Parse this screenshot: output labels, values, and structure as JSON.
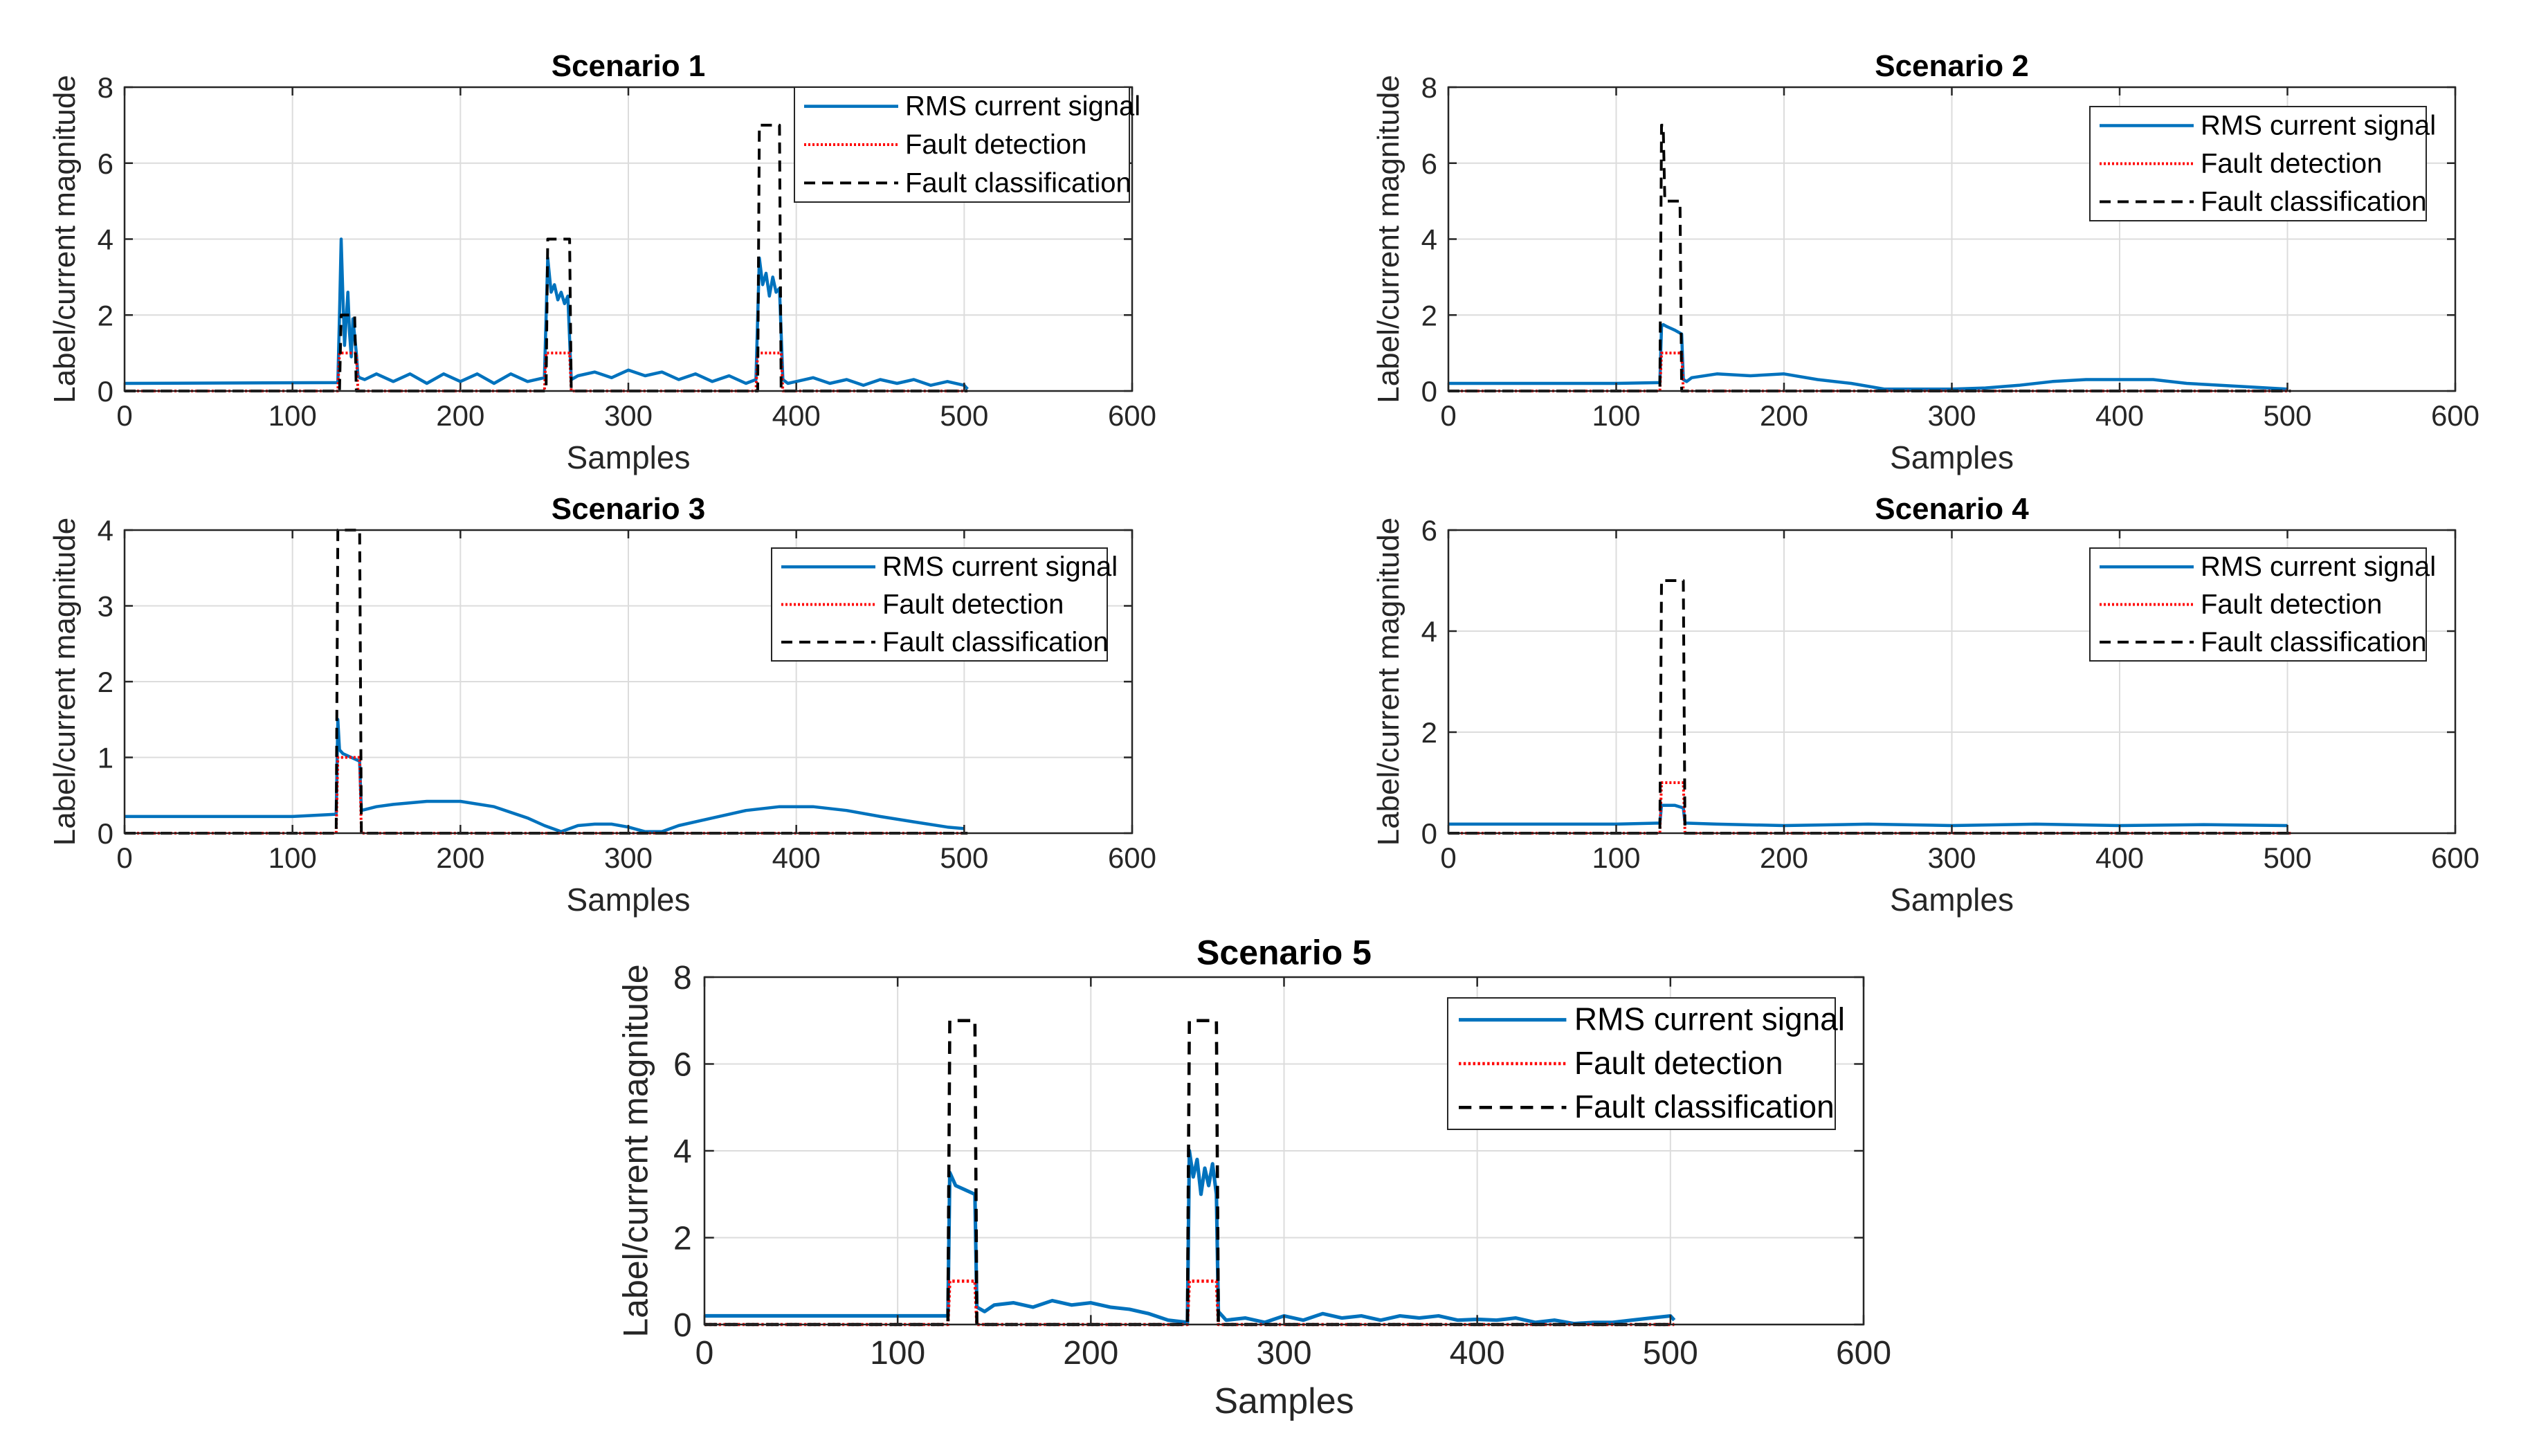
{
  "figure": {
    "colors": {
      "rms": "#0072BD",
      "detection": "#FF0000",
      "classification": "#000000",
      "grid": "#dcdcdc",
      "axis": "#262626"
    }
  },
  "chart_data": [
    {
      "type": "line",
      "title": "Scenario 1",
      "xlabel": "Samples",
      "ylabel": "Label/current magnitude",
      "xlim": [
        0,
        600
      ],
      "ylim": [
        0,
        8
      ],
      "xticks": [
        "0",
        "100",
        "200",
        "300",
        "400",
        "500",
        "600"
      ],
      "yticks": [
        "0",
        "2",
        "4",
        "6",
        "8"
      ],
      "legend": [
        "RMS current signal",
        "Fault detection",
        "Fault classification"
      ],
      "legend_position": "top-right",
      "series": [
        {
          "name": "RMS current signal",
          "style": "solid",
          "x": [
            0,
            127,
            128,
            129,
            130,
            131,
            133,
            134,
            135,
            136,
            138,
            139,
            140,
            143,
            150,
            160,
            170,
            180,
            190,
            200,
            210,
            220,
            230,
            240,
            250,
            252,
            254,
            256,
            258,
            260,
            262,
            264,
            266,
            270,
            280,
            290,
            300,
            310,
            320,
            330,
            340,
            350,
            360,
            370,
            376,
            378,
            380,
            382,
            384,
            386,
            388,
            390,
            392,
            395,
            400,
            410,
            420,
            430,
            440,
            450,
            460,
            470,
            480,
            490,
            500,
            502
          ],
          "y": [
            0.2,
            0.22,
            2.0,
            4.0,
            2.5,
            1.2,
            2.6,
            1.5,
            0.9,
            1.9,
            1.0,
            0.4,
            0.35,
            0.3,
            0.45,
            0.25,
            0.45,
            0.2,
            0.45,
            0.25,
            0.45,
            0.2,
            0.45,
            0.25,
            0.35,
            3.5,
            2.6,
            2.8,
            2.4,
            2.6,
            2.3,
            2.5,
            0.3,
            0.4,
            0.5,
            0.35,
            0.55,
            0.4,
            0.5,
            0.3,
            0.45,
            0.25,
            0.4,
            0.2,
            0.3,
            3.5,
            2.8,
            3.1,
            2.5,
            3.0,
            2.6,
            2.7,
            0.3,
            0.2,
            0.25,
            0.35,
            0.2,
            0.3,
            0.15,
            0.3,
            0.2,
            0.3,
            0.15,
            0.25,
            0.15,
            0.05
          ]
        },
        {
          "name": "Fault detection",
          "style": "dotted",
          "x": [
            0,
            127,
            128,
            138,
            139,
            250,
            251,
            265,
            266,
            376,
            377,
            391,
            392,
            502
          ],
          "y": [
            0,
            0,
            1,
            1,
            0,
            0,
            1,
            1,
            0,
            0,
            1,
            1,
            0,
            0
          ]
        },
        {
          "name": "Fault classification",
          "style": "dashed",
          "x": [
            0,
            128,
            129,
            137,
            138,
            251,
            252,
            265,
            266,
            377,
            378,
            390,
            391,
            502
          ],
          "y": [
            0,
            0,
            2,
            2,
            0,
            0,
            4,
            4,
            0,
            0,
            7,
            7,
            0,
            0
          ]
        }
      ]
    },
    {
      "type": "line",
      "title": "Scenario 2",
      "xlabel": "Samples",
      "ylabel": "Label/current magnitude",
      "xlim": [
        0,
        600
      ],
      "ylim": [
        0,
        8
      ],
      "xticks": [
        "0",
        "100",
        "200",
        "300",
        "400",
        "500",
        "600"
      ],
      "yticks": [
        "0",
        "2",
        "4",
        "6",
        "8"
      ],
      "legend": [
        "RMS current signal",
        "Fault detection",
        "Fault classification"
      ],
      "legend_position": "top-right",
      "series": [
        {
          "name": "RMS current signal",
          "style": "solid",
          "x": [
            0,
            100,
            126,
            127,
            128,
            130,
            135,
            139,
            140,
            142,
            145,
            160,
            180,
            200,
            220,
            240,
            260,
            280,
            300,
            320,
            340,
            360,
            380,
            400,
            420,
            440,
            460,
            480,
            500
          ],
          "y": [
            0.2,
            0.2,
            0.22,
            1.7,
            1.75,
            1.7,
            1.6,
            1.5,
            0.3,
            0.25,
            0.35,
            0.45,
            0.4,
            0.45,
            0.3,
            0.2,
            0.05,
            0.05,
            0.05,
            0.08,
            0.15,
            0.25,
            0.3,
            0.3,
            0.3,
            0.2,
            0.15,
            0.1,
            0.05
          ]
        },
        {
          "name": "Fault detection",
          "style": "dotted",
          "x": [
            0,
            126,
            127,
            139,
            140,
            502
          ],
          "y": [
            0,
            0,
            1,
            1,
            0,
            0
          ]
        },
        {
          "name": "Fault classification",
          "style": "dashed",
          "x": [
            0,
            126,
            127,
            128,
            129,
            136,
            137,
            138,
            139,
            502
          ],
          "y": [
            0,
            0,
            7,
            7,
            5,
            5,
            5,
            5,
            0,
            0
          ]
        }
      ]
    },
    {
      "type": "line",
      "title": "Scenario 3",
      "xlabel": "Samples",
      "ylabel": "Label/current magnitude",
      "xlim": [
        0,
        600
      ],
      "ylim": [
        0,
        4
      ],
      "xticks": [
        "0",
        "100",
        "200",
        "300",
        "400",
        "500",
        "600"
      ],
      "yticks": [
        "0",
        "1",
        "2",
        "3",
        "4"
      ],
      "legend": [
        "RMS current signal",
        "Fault detection",
        "Fault classification"
      ],
      "legend_position": "top-right",
      "series": [
        {
          "name": "RMS current signal",
          "style": "solid",
          "x": [
            0,
            50,
            100,
            126,
            127,
            128,
            130,
            135,
            140,
            141,
            150,
            160,
            180,
            200,
            220,
            240,
            250,
            260,
            270,
            280,
            290,
            300,
            310,
            320,
            330,
            350,
            370,
            390,
            410,
            430,
            450,
            470,
            490,
            500
          ],
          "y": [
            0.22,
            0.22,
            0.22,
            0.25,
            1.5,
            1.1,
            1.05,
            1.0,
            0.95,
            0.3,
            0.35,
            0.38,
            0.42,
            0.42,
            0.35,
            0.2,
            0.1,
            0.02,
            0.1,
            0.12,
            0.12,
            0.08,
            0.02,
            0.02,
            0.1,
            0.2,
            0.3,
            0.35,
            0.35,
            0.3,
            0.22,
            0.15,
            0.08,
            0.06
          ]
        },
        {
          "name": "Fault detection",
          "style": "dotted",
          "x": [
            0,
            126,
            127,
            140,
            141,
            502
          ],
          "y": [
            0,
            0,
            1,
            1,
            0,
            0
          ]
        },
        {
          "name": "Fault classification",
          "style": "dashed",
          "x": [
            0,
            126,
            127,
            140,
            141,
            502
          ],
          "y": [
            0,
            0,
            4,
            4,
            0,
            0
          ]
        }
      ]
    },
    {
      "type": "line",
      "title": "Scenario 4",
      "xlabel": "Samples",
      "ylabel": "Label/current magnitude",
      "xlim": [
        0,
        600
      ],
      "ylim": [
        0,
        6
      ],
      "xticks": [
        "0",
        "100",
        "200",
        "300",
        "400",
        "500",
        "600"
      ],
      "yticks": [
        "0",
        "2",
        "4",
        "6"
      ],
      "legend": [
        "RMS current signal",
        "Fault detection",
        "Fault classification"
      ],
      "legend_position": "top-right",
      "series": [
        {
          "name": "RMS current signal",
          "style": "solid",
          "x": [
            0,
            100,
            126,
            127,
            130,
            135,
            140,
            141,
            160,
            200,
            250,
            300,
            350,
            400,
            450,
            500
          ],
          "y": [
            0.18,
            0.18,
            0.2,
            0.55,
            0.55,
            0.55,
            0.5,
            0.2,
            0.18,
            0.15,
            0.18,
            0.15,
            0.18,
            0.15,
            0.17,
            0.15
          ]
        },
        {
          "name": "Fault detection",
          "style": "dotted",
          "x": [
            0,
            126,
            127,
            140,
            141,
            502
          ],
          "y": [
            0,
            0,
            1,
            1,
            0,
            0
          ]
        },
        {
          "name": "Fault classification",
          "style": "dashed",
          "x": [
            0,
            126,
            127,
            140,
            141,
            502
          ],
          "y": [
            0,
            0,
            5,
            5,
            0,
            0
          ]
        }
      ]
    },
    {
      "type": "line",
      "title": "Scenario 5",
      "xlabel": "Samples",
      "ylabel": "Label/current magnitude",
      "xlim": [
        0,
        600
      ],
      "ylim": [
        0,
        8
      ],
      "xticks": [
        "0",
        "100",
        "200",
        "300",
        "400",
        "500",
        "600"
      ],
      "yticks": [
        "0",
        "2",
        "4",
        "6",
        "8"
      ],
      "legend": [
        "RMS current signal",
        "Fault detection",
        "Fault classification"
      ],
      "legend_position": "top-right",
      "series": [
        {
          "name": "RMS current signal",
          "style": "solid",
          "x": [
            0,
            100,
            126,
            127,
            130,
            135,
            140,
            141,
            145,
            150,
            160,
            170,
            180,
            190,
            200,
            210,
            220,
            230,
            240,
            250,
            251,
            253,
            255,
            257,
            259,
            261,
            263,
            265,
            266,
            270,
            280,
            290,
            300,
            310,
            320,
            330,
            340,
            350,
            360,
            370,
            380,
            390,
            400,
            410,
            420,
            430,
            440,
            450,
            460,
            470,
            480,
            490,
            500,
            502
          ],
          "y": [
            0.2,
            0.2,
            0.2,
            3.5,
            3.2,
            3.1,
            3.0,
            0.4,
            0.3,
            0.45,
            0.5,
            0.4,
            0.55,
            0.45,
            0.5,
            0.4,
            0.35,
            0.25,
            0.1,
            0.05,
            4.0,
            3.4,
            3.8,
            3.0,
            3.6,
            3.2,
            3.7,
            3.0,
            0.3,
            0.1,
            0.15,
            0.05,
            0.2,
            0.1,
            0.25,
            0.15,
            0.2,
            0.1,
            0.2,
            0.15,
            0.2,
            0.1,
            0.12,
            0.1,
            0.15,
            0.05,
            0.1,
            0.02,
            0.05,
            0.05,
            0.1,
            0.15,
            0.2,
            0.1
          ]
        },
        {
          "name": "Fault detection",
          "style": "dotted",
          "x": [
            0,
            126,
            127,
            140,
            141,
            250,
            251,
            265,
            266,
            502
          ],
          "y": [
            0,
            0,
            1,
            1,
            0,
            0,
            1,
            1,
            0,
            0
          ]
        },
        {
          "name": "Fault classification",
          "style": "dashed",
          "x": [
            0,
            126,
            127,
            140,
            141,
            250,
            251,
            265,
            266,
            502
          ],
          "y": [
            0,
            0,
            7,
            7,
            0,
            0,
            7,
            7,
            0,
            0
          ]
        }
      ]
    }
  ]
}
